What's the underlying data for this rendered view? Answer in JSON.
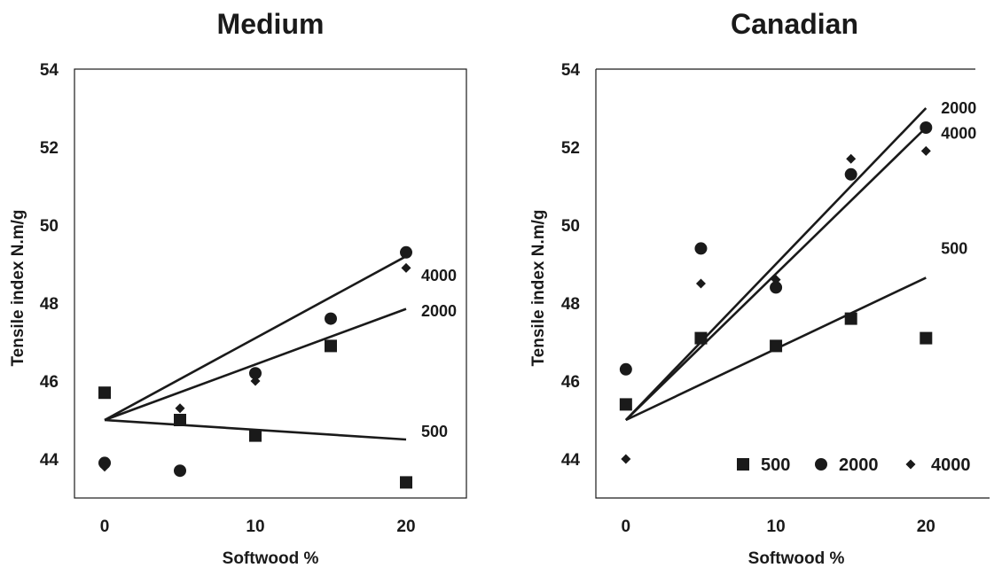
{
  "chart_data": [
    {
      "type": "scatter",
      "title": "Medium",
      "xlabel": "Softwood %",
      "ylabel": "Tensile index N.m/g",
      "xlim": [
        -2,
        24
      ],
      "ylim": [
        43,
        54
      ],
      "xticks": [
        0,
        10,
        20
      ],
      "yticks": [
        44,
        46,
        48,
        50,
        52,
        54
      ],
      "grid": false,
      "series": [
        {
          "name": "500",
          "marker": "square",
          "x": [
            0,
            5,
            10,
            15,
            20
          ],
          "y": [
            45.7,
            45.0,
            44.6,
            46.9,
            43.4
          ]
        },
        {
          "name": "2000",
          "marker": "circle",
          "x": [
            0,
            5,
            10,
            15,
            20
          ],
          "y": [
            43.9,
            43.7,
            46.2,
            47.6,
            49.3
          ]
        },
        {
          "name": "4000",
          "marker": "diamond",
          "x": [
            0,
            5,
            10,
            20
          ],
          "y": [
            43.8,
            45.3,
            46.0,
            48.9
          ]
        }
      ],
      "trendlines": [
        {
          "label": "500",
          "x": [
            0,
            20
          ],
          "y": [
            45.0,
            44.5
          ],
          "label_at": [
            21,
            44.7
          ]
        },
        {
          "label": "2000",
          "x": [
            0,
            20
          ],
          "y": [
            45.0,
            47.85
          ],
          "label_at": [
            21,
            47.8
          ]
        },
        {
          "label": "4000",
          "x": [
            0,
            20
          ],
          "y": [
            45.0,
            49.2
          ],
          "label_at": [
            21,
            48.7
          ]
        }
      ]
    },
    {
      "type": "scatter",
      "title": "Canadian",
      "xlabel": "Softwood %",
      "ylabel": "Tensile index N.m/g",
      "xlim": [
        -2,
        24
      ],
      "ylim": [
        43,
        54
      ],
      "xticks": [
        0,
        10,
        20
      ],
      "yticks": [
        44,
        46,
        48,
        50,
        52,
        54
      ],
      "grid": false,
      "legend_position": "bottom-right",
      "series": [
        {
          "name": "500",
          "marker": "square",
          "x": [
            0,
            5,
            10,
            15,
            20
          ],
          "y": [
            45.4,
            47.1,
            46.9,
            47.6,
            47.1
          ]
        },
        {
          "name": "2000",
          "marker": "circle",
          "x": [
            0,
            5,
            10,
            15,
            20
          ],
          "y": [
            46.3,
            49.4,
            48.4,
            51.3,
            52.5
          ]
        },
        {
          "name": "4000",
          "marker": "diamond",
          "x": [
            0,
            5,
            10,
            15,
            20
          ],
          "y": [
            44.0,
            48.5,
            48.6,
            51.7,
            51.9
          ]
        }
      ],
      "trendlines": [
        {
          "label": "500",
          "x": [
            0,
            20
          ],
          "y": [
            45.0,
            48.65
          ],
          "label_at": [
            21,
            49.4
          ]
        },
        {
          "label": "2000",
          "x": [
            0,
            20
          ],
          "y": [
            45.0,
            53.0
          ],
          "label_at": [
            21,
            53.0
          ]
        },
        {
          "label": "4000",
          "x": [
            0,
            20
          ],
          "y": [
            45.0,
            52.5
          ],
          "label_at": [
            21,
            52.35
          ]
        }
      ]
    }
  ]
}
